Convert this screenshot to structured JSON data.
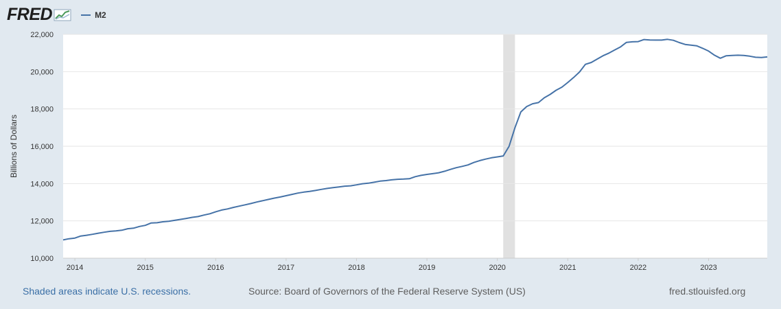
{
  "header": {
    "logo_text": "FRED",
    "logo_icon": "line-chart-icon",
    "legend_label": "M2"
  },
  "colors": {
    "page_background": "#e1e9f0",
    "plot_background": "#ffffff",
    "series_line": "#4572a7",
    "recession_shade": "#e1e1e1",
    "grid": "#e6e6e6",
    "link": "#3a6fa6"
  },
  "chart_data": {
    "type": "line",
    "ylabel": "Billions of Dollars",
    "ylim": [
      10000,
      22000
    ],
    "y_ticks": [
      10000,
      12000,
      14000,
      16000,
      18000,
      20000,
      22000
    ],
    "y_tick_labels": [
      "10,000",
      "12,000",
      "14,000",
      "16,000",
      "18,000",
      "20,000",
      "22,000"
    ],
    "x_range": [
      "2013-11",
      "2023-11"
    ],
    "x_tick_labels": [
      "2014",
      "2015",
      "2016",
      "2017",
      "2018",
      "2019",
      "2020",
      "2021",
      "2022",
      "2023"
    ],
    "grid": "horizontal",
    "legend": "top-left",
    "recessions": [
      {
        "start": "2020-02",
        "end": "2020-04"
      }
    ],
    "series": [
      {
        "name": "M2",
        "points": [
          [
            "2013-11",
            10980
          ],
          [
            "2013-12",
            11040
          ],
          [
            "2014-01",
            11080
          ],
          [
            "2014-02",
            11190
          ],
          [
            "2014-03",
            11230
          ],
          [
            "2014-04",
            11280
          ],
          [
            "2014-05",
            11340
          ],
          [
            "2014-06",
            11390
          ],
          [
            "2014-07",
            11440
          ],
          [
            "2014-08",
            11460
          ],
          [
            "2014-09",
            11500
          ],
          [
            "2014-10",
            11580
          ],
          [
            "2014-11",
            11610
          ],
          [
            "2014-12",
            11700
          ],
          [
            "2015-01",
            11760
          ],
          [
            "2015-02",
            11890
          ],
          [
            "2015-03",
            11900
          ],
          [
            "2015-04",
            11950
          ],
          [
            "2015-05",
            11980
          ],
          [
            "2015-06",
            12030
          ],
          [
            "2015-07",
            12080
          ],
          [
            "2015-08",
            12130
          ],
          [
            "2015-09",
            12190
          ],
          [
            "2015-10",
            12230
          ],
          [
            "2015-11",
            12310
          ],
          [
            "2015-12",
            12380
          ],
          [
            "2016-01",
            12490
          ],
          [
            "2016-02",
            12580
          ],
          [
            "2016-03",
            12640
          ],
          [
            "2016-04",
            12720
          ],
          [
            "2016-05",
            12790
          ],
          [
            "2016-06",
            12860
          ],
          [
            "2016-07",
            12930
          ],
          [
            "2016-08",
            13010
          ],
          [
            "2016-09",
            13080
          ],
          [
            "2016-10",
            13150
          ],
          [
            "2016-11",
            13220
          ],
          [
            "2016-12",
            13280
          ],
          [
            "2017-01",
            13350
          ],
          [
            "2017-02",
            13420
          ],
          [
            "2017-03",
            13490
          ],
          [
            "2017-04",
            13540
          ],
          [
            "2017-05",
            13580
          ],
          [
            "2017-06",
            13630
          ],
          [
            "2017-07",
            13690
          ],
          [
            "2017-08",
            13740
          ],
          [
            "2017-09",
            13780
          ],
          [
            "2017-10",
            13820
          ],
          [
            "2017-11",
            13860
          ],
          [
            "2017-12",
            13880
          ],
          [
            "2018-01",
            13930
          ],
          [
            "2018-02",
            13990
          ],
          [
            "2018-03",
            14020
          ],
          [
            "2018-04",
            14070
          ],
          [
            "2018-05",
            14130
          ],
          [
            "2018-06",
            14160
          ],
          [
            "2018-07",
            14200
          ],
          [
            "2018-08",
            14230
          ],
          [
            "2018-09",
            14240
          ],
          [
            "2018-10",
            14260
          ],
          [
            "2018-11",
            14370
          ],
          [
            "2018-12",
            14440
          ],
          [
            "2019-01",
            14490
          ],
          [
            "2019-02",
            14530
          ],
          [
            "2019-03",
            14580
          ],
          [
            "2019-04",
            14660
          ],
          [
            "2019-05",
            14760
          ],
          [
            "2019-06",
            14850
          ],
          [
            "2019-07",
            14920
          ],
          [
            "2019-08",
            15000
          ],
          [
            "2019-09",
            15130
          ],
          [
            "2019-10",
            15230
          ],
          [
            "2019-11",
            15310
          ],
          [
            "2019-12",
            15380
          ],
          [
            "2020-01",
            15430
          ],
          [
            "2020-02",
            15480
          ],
          [
            "2020-03",
            16000
          ],
          [
            "2020-04",
            17000
          ],
          [
            "2020-05",
            17840
          ],
          [
            "2020-06",
            18130
          ],
          [
            "2020-07",
            18280
          ],
          [
            "2020-08",
            18340
          ],
          [
            "2020-09",
            18600
          ],
          [
            "2020-10",
            18780
          ],
          [
            "2020-11",
            19000
          ],
          [
            "2020-12",
            19170
          ],
          [
            "2021-01",
            19420
          ],
          [
            "2021-02",
            19690
          ],
          [
            "2021-03",
            19980
          ],
          [
            "2021-04",
            20390
          ],
          [
            "2021-05",
            20490
          ],
          [
            "2021-06",
            20670
          ],
          [
            "2021-07",
            20850
          ],
          [
            "2021-08",
            20990
          ],
          [
            "2021-09",
            21160
          ],
          [
            "2021-10",
            21330
          ],
          [
            "2021-11",
            21570
          ],
          [
            "2021-12",
            21600
          ],
          [
            "2022-01",
            21610
          ],
          [
            "2022-02",
            21720
          ],
          [
            "2022-03",
            21700
          ],
          [
            "2022-04",
            21690
          ],
          [
            "2022-05",
            21690
          ],
          [
            "2022-06",
            21730
          ],
          [
            "2022-07",
            21680
          ],
          [
            "2022-08",
            21560
          ],
          [
            "2022-09",
            21460
          ],
          [
            "2022-10",
            21420
          ],
          [
            "2022-11",
            21380
          ],
          [
            "2022-12",
            21250
          ],
          [
            "2023-01",
            21100
          ],
          [
            "2023-02",
            20880
          ],
          [
            "2023-03",
            20720
          ],
          [
            "2023-04",
            20850
          ],
          [
            "2023-05",
            20870
          ],
          [
            "2023-06",
            20880
          ],
          [
            "2023-07",
            20870
          ],
          [
            "2023-08",
            20830
          ],
          [
            "2023-09",
            20770
          ],
          [
            "2023-10",
            20760
          ],
          [
            "2023-11",
            20790
          ]
        ]
      }
    ]
  },
  "footer": {
    "recession_note": "Shaded areas indicate U.S. recessions.",
    "source": "Source: Board of Governors of the Federal Reserve System (US)",
    "site": "fred.stlouisfed.org"
  }
}
